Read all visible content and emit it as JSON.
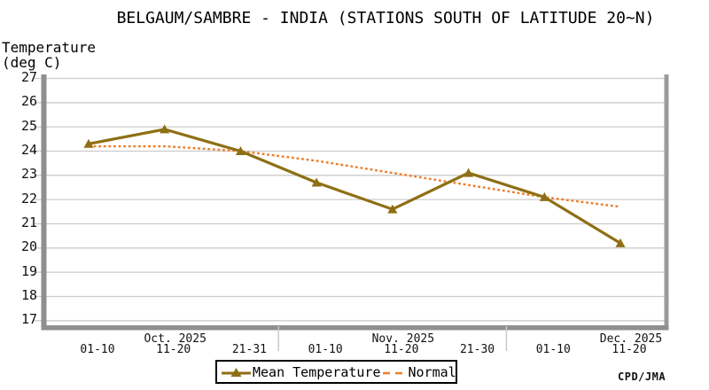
{
  "chart_data": {
    "type": "line",
    "title": "BELGAUM/SAMBRE - INDIA (STATIONS SOUTH OF LATITUDE 20~N)",
    "ylabel_lines": [
      "Temperature",
      "(deg C)"
    ],
    "credit": "CPD/JMA",
    "ylim": [
      17,
      27
    ],
    "yticks": [
      27,
      26,
      25,
      24,
      23,
      22,
      21,
      20,
      19,
      18,
      17
    ],
    "categories": [
      "01-10",
      "11-20",
      "21-31",
      "01-10",
      "11-20",
      "21-30",
      "01-10",
      "11-20"
    ],
    "month_labels": [
      {
        "text": "Oct. 2025",
        "index": 1
      },
      {
        "text": "Nov. 2025",
        "index": 4
      },
      {
        "text": "Dec. 2025",
        "index": 7
      }
    ],
    "month_separators_after_index": [
      2,
      5
    ],
    "grid": true,
    "legend_position": "bottom-center",
    "colors": {
      "grid": "#cccccc",
      "frame": "#8f8f8f",
      "frame_right": "#9a9a9a"
    },
    "series": [
      {
        "name": "Mean Temperature",
        "style": "solid",
        "marker": "triangle",
        "color": "#8e6f14",
        "values": [
          24.3,
          24.9,
          24.0,
          22.7,
          21.6,
          23.1,
          22.1,
          20.2
        ]
      },
      {
        "name": "Normal",
        "style": "dashed",
        "marker": "none",
        "color": "#ee7d28",
        "values": [
          24.2,
          24.2,
          24.0,
          23.6,
          23.1,
          22.6,
          22.1,
          21.7
        ]
      }
    ]
  }
}
